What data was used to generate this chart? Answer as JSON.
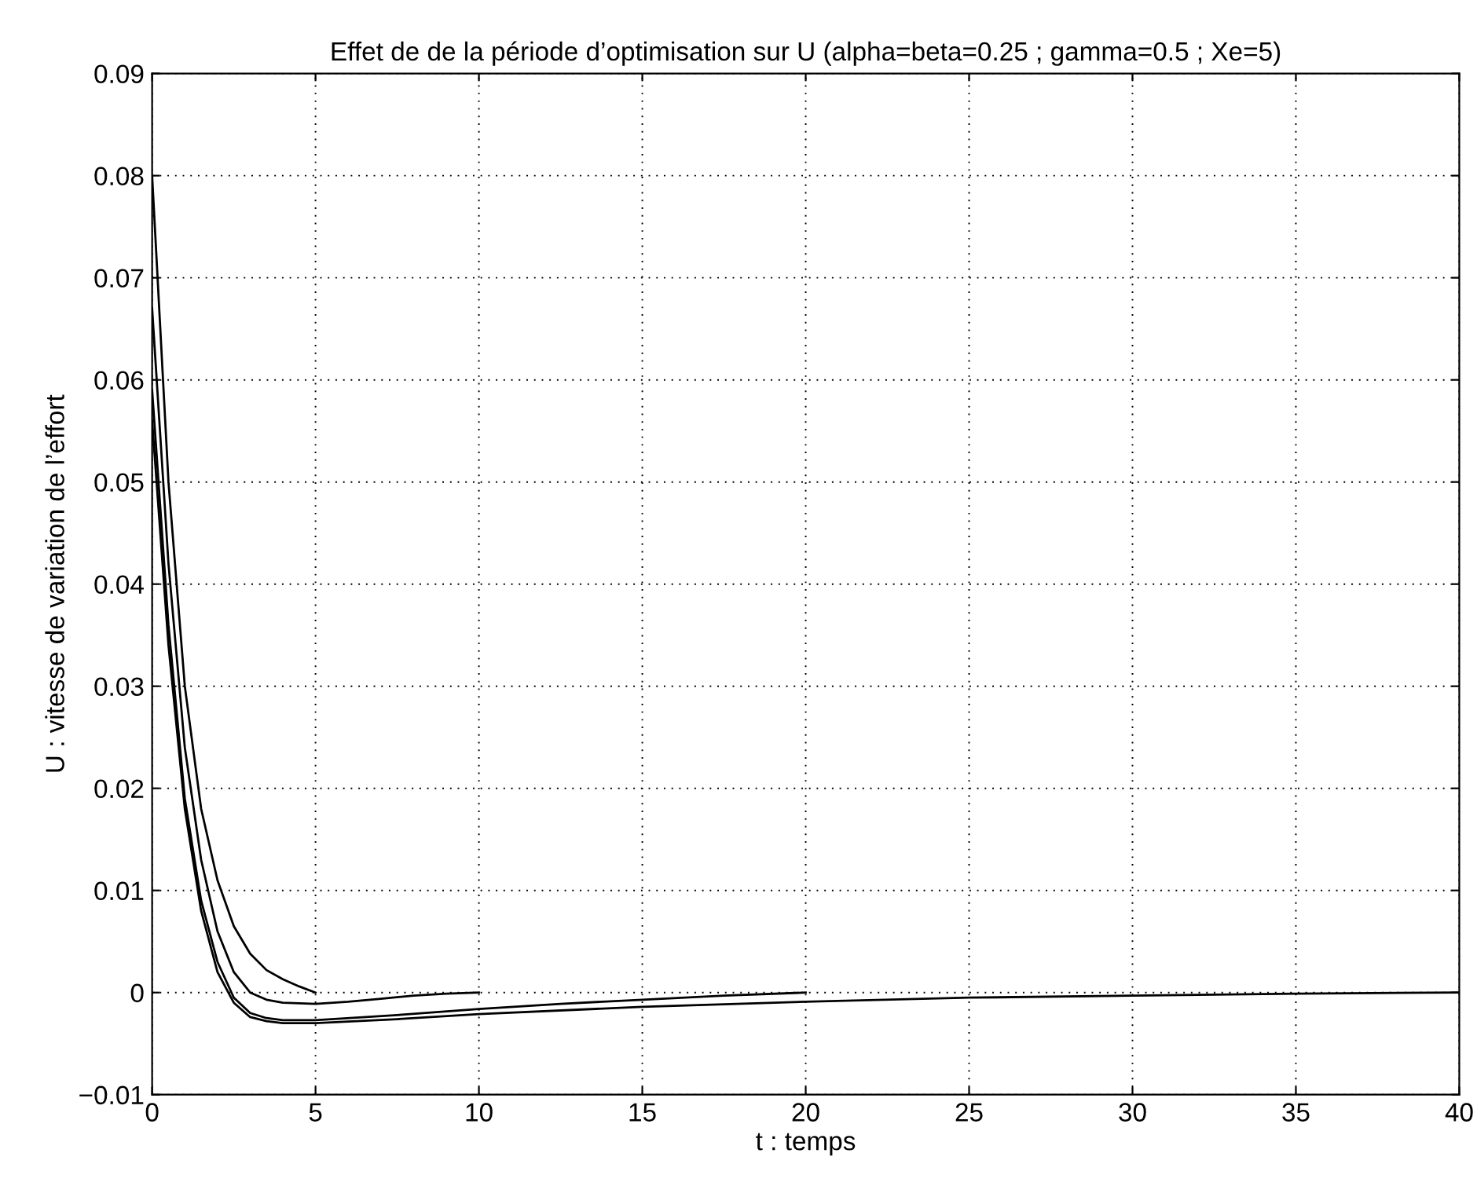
{
  "chart_data": {
    "type": "line",
    "title": "Effet de de la période d’optimisation sur U (alpha=beta=0.25 ; gamma=0.5 ; Xe=5)",
    "xlabel": "t : temps",
    "ylabel": "U : vitesse de variation de l’effort",
    "xlim": [
      0,
      40
    ],
    "xticks": [
      0,
      5,
      10,
      15,
      20,
      25,
      30,
      35,
      40
    ],
    "ylim": [
      -0.01,
      0.09
    ],
    "yticks": [
      {
        "value": -0.01,
        "label": "−0.01"
      },
      0,
      0.01,
      0.02,
      0.03,
      0.04,
      0.05,
      0.06,
      0.07,
      0.08,
      0.09
    ],
    "grid": true,
    "line_style": "solid",
    "marker": "none",
    "series": [
      {
        "color": "#000000",
        "x": [
          0,
          0.5,
          1,
          1.5,
          2,
          2.5,
          3,
          3.5,
          4,
          4.5,
          5
        ],
        "values": [
          0.08,
          0.05,
          0.03,
          0.018,
          0.011,
          0.0065,
          0.0038,
          0.0022,
          0.0013,
          0.0006,
          0
        ]
      },
      {
        "color": "#000000",
        "x": [
          0,
          0.5,
          1,
          1.5,
          2,
          2.5,
          3,
          3.5,
          4,
          5,
          6,
          7,
          8,
          9,
          10
        ],
        "values": [
          0.067,
          0.042,
          0.024,
          0.013,
          0.006,
          0.002,
          0.0,
          -0.0007,
          -0.001,
          -0.0011,
          -0.0009,
          -0.0006,
          -0.0003,
          -0.0001,
          0
        ]
      },
      {
        "color": "#000000",
        "x": [
          0,
          0.5,
          1,
          1.5,
          2,
          2.5,
          3,
          3.5,
          4,
          5,
          7.5,
          10,
          12.5,
          15,
          17.5,
          20
        ],
        "values": [
          0.059,
          0.036,
          0.019,
          0.009,
          0.003,
          -0.0005,
          -0.002,
          -0.0025,
          -0.0027,
          -0.0027,
          -0.0022,
          -0.0016,
          -0.0011,
          -0.0007,
          -0.0003,
          0
        ]
      },
      {
        "color": "#000000",
        "x": [
          0,
          0.5,
          1,
          1.5,
          2,
          2.5,
          3,
          3.5,
          4,
          5,
          7.5,
          10,
          15,
          20,
          25,
          30,
          35,
          40
        ],
        "values": [
          0.056,
          0.034,
          0.018,
          0.008,
          0.002,
          -0.001,
          -0.0024,
          -0.0028,
          -0.003,
          -0.003,
          -0.0026,
          -0.0021,
          -0.0014,
          -0.0009,
          -0.0005,
          -0.0003,
          -0.0001,
          0
        ]
      }
    ]
  }
}
